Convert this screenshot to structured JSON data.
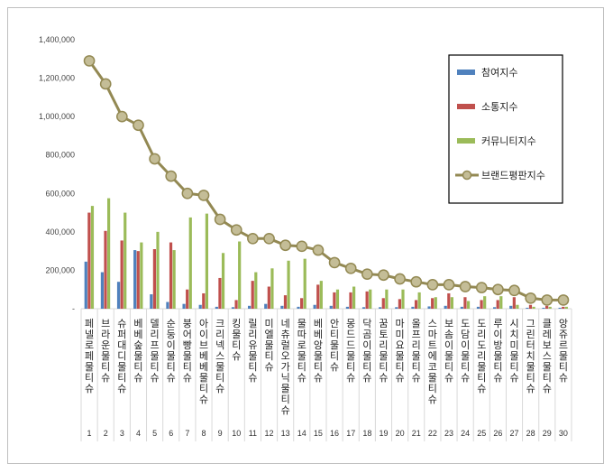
{
  "chart_data": {
    "type": "bar",
    "title": "",
    "xlabel": "",
    "ylabel": "",
    "ylim": [
      0,
      1400000
    ],
    "yticks": [
      "1,400,000",
      "1,200,000",
      "1,000,000",
      "800,000",
      "600,000",
      "400,000",
      "200,000",
      "-"
    ],
    "ytick_values": [
      1400000,
      1200000,
      1000000,
      800000,
      600000,
      400000,
      200000,
      0
    ],
    "grid": false,
    "legend_position": "right",
    "categories": [
      "페넬로페물티슈",
      "브라운물티슈",
      "슈퍼대디물티슈",
      "베베숲물티슈",
      "델리프물티슈",
      "순둥이물티슈",
      "붕어빵물티슈",
      "아이브베베물티슈",
      "크리넥스물티슈",
      "킹물티슈",
      "릴리유물티슈",
      "미엘물티슈",
      "네츄럴오가닉물티슈",
      "물따로물티슈",
      "베베앙물티슈",
      "안티물티슈",
      "몽드드물티슈",
      "닥곰이물티슈",
      "꿈토리물티슈",
      "마미요물티슈",
      "올프리물티슈",
      "스마트에코물티슈",
      "보솜이물티슈",
      "도담이물티슈",
      "도리도리물티슈",
      "루이방물티슈",
      "시치미물티슈",
      "그린터치물티슈",
      "클레보스물티슈",
      "앙쥬르물티슈"
    ],
    "ranks": [
      "1",
      "2",
      "3",
      "4",
      "5",
      "6",
      "7",
      "8",
      "9",
      "10",
      "11",
      "12",
      "13",
      "14",
      "15",
      "16",
      "17",
      "18",
      "19",
      "20",
      "21",
      "22",
      "23",
      "24",
      "25",
      "26",
      "27",
      "28",
      "29",
      "30"
    ],
    "series": [
      {
        "name": "참여지수",
        "type": "bar",
        "color": "#4f81bd",
        "values": [
          245000,
          190000,
          140000,
          305000,
          75000,
          35000,
          25000,
          20000,
          10000,
          8000,
          15000,
          25000,
          15000,
          10000,
          20000,
          15000,
          10000,
          8000,
          8000,
          8000,
          10000,
          12000,
          15000,
          10000,
          10000,
          8000,
          15000,
          5000,
          5000,
          5000
        ]
      },
      {
        "name": "소통지수",
        "type": "bar",
        "color": "#c0504d",
        "values": [
          500000,
          405000,
          355000,
          300000,
          310000,
          345000,
          100000,
          80000,
          160000,
          45000,
          145000,
          115000,
          70000,
          55000,
          125000,
          85000,
          85000,
          90000,
          55000,
          50000,
          45000,
          55000,
          80000,
          60000,
          45000,
          45000,
          60000,
          20000,
          15000,
          10000
        ]
      },
      {
        "name": "커뮤니티지수",
        "type": "bar",
        "color": "#9bbb59",
        "values": [
          535000,
          575000,
          500000,
          345000,
          400000,
          305000,
          475000,
          495000,
          290000,
          350000,
          190000,
          210000,
          250000,
          260000,
          145000,
          100000,
          115000,
          100000,
          100000,
          100000,
          85000,
          60000,
          60000,
          40000,
          65000,
          65000,
          20000,
          10000,
          10000,
          10000
        ]
      },
      {
        "name": "브랜드평판지수",
        "type": "line",
        "color": "#938953",
        "values": [
          1290000,
          1170000,
          1000000,
          955000,
          780000,
          690000,
          600000,
          590000,
          465000,
          410000,
          365000,
          365000,
          330000,
          325000,
          305000,
          240000,
          210000,
          180000,
          175000,
          155000,
          140000,
          125000,
          125000,
          115000,
          110000,
          100000,
          95000,
          55000,
          45000,
          45000
        ]
      }
    ]
  }
}
